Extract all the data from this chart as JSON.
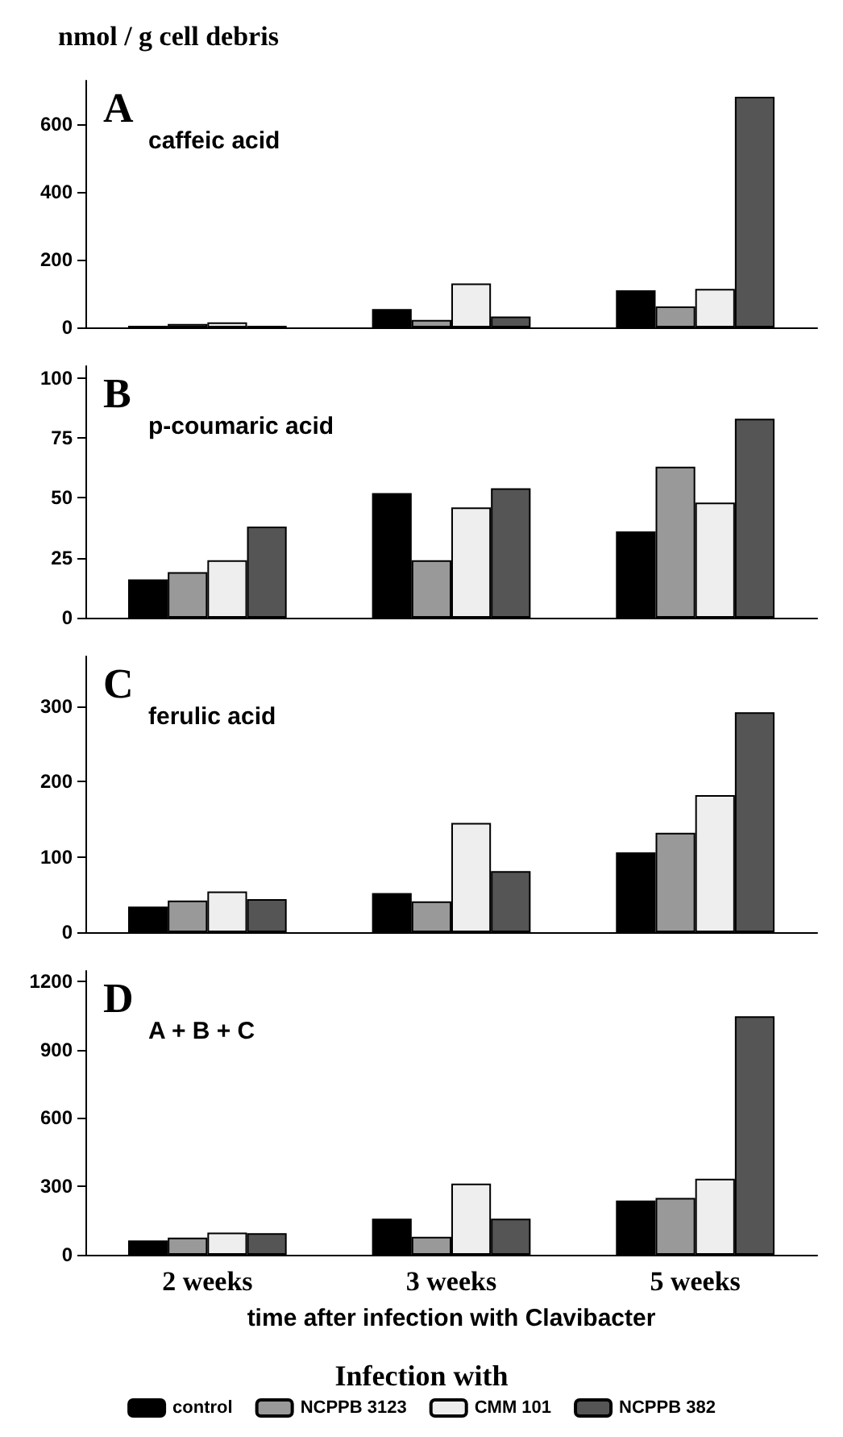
{
  "chart_data": [
    {
      "type": "bar",
      "title": "A",
      "subtitle": "caffeic acid",
      "ylabel": "nmol / g cell debris",
      "categories": [
        null,
        null,
        null
      ],
      "tick_labels": "y",
      "ylim": [
        0,
        730
      ],
      "yticks": [
        0,
        200,
        400,
        600
      ],
      "grid": false,
      "series": [
        {
          "color": "#000000",
          "values": [
            5,
            54,
            110
          ]
        },
        {
          "color": "#999999",
          "values": [
            10,
            22,
            62
          ]
        },
        {
          "color": "#eeeeee",
          "values": [
            15,
            130,
            114
          ]
        },
        {
          "color": "#555555",
          "values": [
            5,
            32,
            682
          ]
        }
      ]
    },
    {
      "type": "bar",
      "title": "B",
      "subtitle": "p-coumaric acid",
      "categories": [
        null,
        null,
        null
      ],
      "tick_labels": "y",
      "ylim": [
        0,
        105
      ],
      "yticks": [
        0,
        25,
        50,
        75,
        100
      ],
      "grid": false,
      "series": [
        {
          "color": "#000000",
          "values": [
            16,
            52,
            36
          ]
        },
        {
          "color": "#999999",
          "values": [
            19,
            24,
            63
          ]
        },
        {
          "color": "#eeeeee",
          "values": [
            24,
            46,
            48
          ]
        },
        {
          "color": "#555555",
          "values": [
            38,
            54,
            83
          ]
        }
      ]
    },
    {
      "type": "bar",
      "title": "C",
      "subtitle": "ferulic acid",
      "categories": [
        null,
        null,
        null
      ],
      "tick_labels": "y",
      "ylim": [
        0,
        366
      ],
      "yticks": [
        0,
        100,
        200,
        300
      ],
      "grid": false,
      "series": [
        {
          "color": "#000000",
          "values": [
            34,
            52,
            106
          ]
        },
        {
          "color": "#999999",
          "values": [
            42,
            41,
            132
          ]
        },
        {
          "color": "#eeeeee",
          "values": [
            54,
            145,
            182
          ]
        },
        {
          "color": "#555555",
          "values": [
            44,
            81,
            292
          ]
        }
      ]
    },
    {
      "type": "bar",
      "title": "D",
      "subtitle": "A + B + C",
      "xlabel": "time after infection with Clavibacter",
      "legend_title": "Infection with",
      "legend": "bottom",
      "categories": [
        "2 weeks",
        "3 weeks",
        "5 weeks"
      ],
      "ylim": [
        0,
        1245
      ],
      "yticks": [
        0,
        300,
        600,
        900,
        1200
      ],
      "grid": false,
      "series": [
        {
          "name": "control",
          "color": "#000000",
          "values": [
            63,
            158,
            238
          ]
        },
        {
          "name": "NCPPB 3123",
          "color": "#999999",
          "values": [
            75,
            79,
            249
          ]
        },
        {
          "name": "CMM 101",
          "color": "#eeeeee",
          "values": [
            97,
            312,
            333
          ]
        },
        {
          "name": "NCPPB 382",
          "color": "#555555",
          "values": [
            95,
            158,
            1046
          ]
        }
      ]
    }
  ]
}
